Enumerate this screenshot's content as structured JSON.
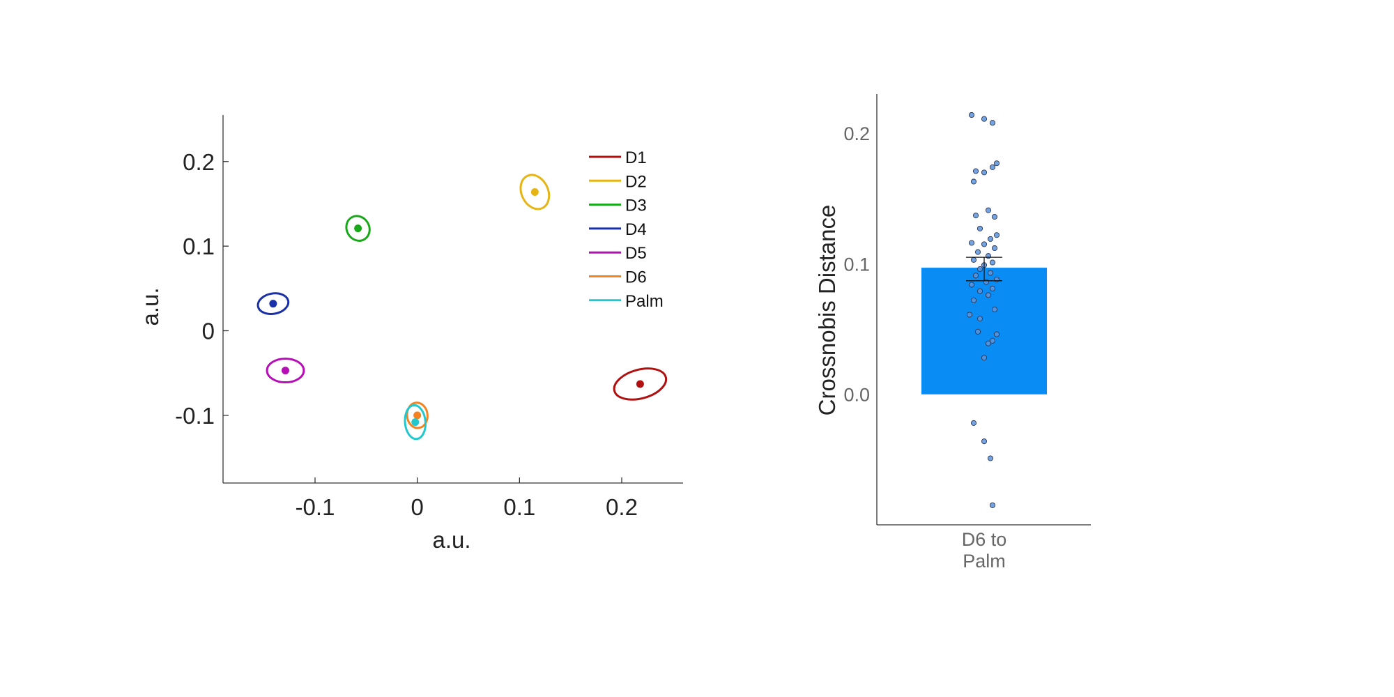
{
  "chart_data": [
    {
      "type": "scatter",
      "xlabel": "a.u.",
      "ylabel": "a.u.",
      "xlim": [
        -0.19,
        0.26
      ],
      "ylim": [
        -0.18,
        0.255
      ],
      "xticks": [
        -0.1,
        0,
        0.1,
        0.2
      ],
      "xtick_labels": [
        "-0.1",
        "0",
        "0.1",
        "0.2"
      ],
      "yticks": [
        -0.1,
        0,
        0.1,
        0.2
      ],
      "ytick_labels": [
        "-0.1",
        "0",
        "0.1",
        "0.2"
      ],
      "legend_position": "top-right",
      "series": [
        {
          "name": "D1",
          "color": "#b01010",
          "x": 0.218,
          "y": -0.063,
          "ellipse_rx": 0.026,
          "ellipse_ry": 0.017,
          "ellipse_angle_deg": 15
        },
        {
          "name": "D2",
          "color": "#e6b413",
          "x": 0.115,
          "y": 0.164,
          "ellipse_rx": 0.013,
          "ellipse_ry": 0.021,
          "ellipse_angle_deg": 25
        },
        {
          "name": "D3",
          "color": "#19a819",
          "x": -0.058,
          "y": 0.121,
          "ellipse_rx": 0.011,
          "ellipse_ry": 0.015,
          "ellipse_angle_deg": 30
        },
        {
          "name": "D4",
          "color": "#1a30a8",
          "x": -0.141,
          "y": 0.032,
          "ellipse_rx": 0.015,
          "ellipse_ry": 0.012,
          "ellipse_angle_deg": 10
        },
        {
          "name": "D5",
          "color": "#b50eb5",
          "x": -0.129,
          "y": -0.047,
          "ellipse_rx": 0.018,
          "ellipse_ry": 0.014,
          "ellipse_angle_deg": 0
        },
        {
          "name": "D6",
          "color": "#f5821f",
          "x": 0.0,
          "y": -0.1,
          "ellipse_rx": 0.01,
          "ellipse_ry": 0.015,
          "ellipse_angle_deg": 5
        },
        {
          "name": "Palm",
          "color": "#22c8cc",
          "x": -0.002,
          "y": -0.108,
          "ellipse_rx": 0.01,
          "ellipse_ry": 0.02,
          "ellipse_angle_deg": 5
        }
      ]
    },
    {
      "type": "bar",
      "categories": [
        "D6 to\nPalm"
      ],
      "category_lines": [
        "D6 to",
        "Palm"
      ],
      "values": [
        0.097
      ],
      "error_low": 0.087,
      "error_high": 0.105,
      "bar_color": "#0a8cf5",
      "point_color": "#5b93dc",
      "ylabel": "Crossnobis Distance",
      "ylim": [
        -0.1,
        0.23
      ],
      "yticks": [
        0.0,
        0.1,
        0.2
      ],
      "ytick_labels": [
        "0.0",
        "0.1",
        "0.2"
      ],
      "points": [
        {
          "jitter": -0.06,
          "y": 0.214
        },
        {
          "jitter": 0.0,
          "y": 0.211
        },
        {
          "jitter": 0.04,
          "y": 0.208
        },
        {
          "jitter": 0.06,
          "y": 0.177
        },
        {
          "jitter": 0.04,
          "y": 0.174
        },
        {
          "jitter": -0.04,
          "y": 0.171
        },
        {
          "jitter": 0.0,
          "y": 0.17
        },
        {
          "jitter": -0.05,
          "y": 0.163
        },
        {
          "jitter": 0.02,
          "y": 0.141
        },
        {
          "jitter": -0.04,
          "y": 0.137
        },
        {
          "jitter": 0.05,
          "y": 0.136
        },
        {
          "jitter": -0.02,
          "y": 0.127
        },
        {
          "jitter": 0.06,
          "y": 0.122
        },
        {
          "jitter": 0.03,
          "y": 0.119
        },
        {
          "jitter": -0.06,
          "y": 0.116
        },
        {
          "jitter": 0.0,
          "y": 0.115
        },
        {
          "jitter": 0.05,
          "y": 0.112
        },
        {
          "jitter": -0.03,
          "y": 0.109
        },
        {
          "jitter": 0.02,
          "y": 0.106
        },
        {
          "jitter": -0.05,
          "y": 0.103
        },
        {
          "jitter": 0.04,
          "y": 0.101
        },
        {
          "jitter": 0.0,
          "y": 0.099
        },
        {
          "jitter": -0.02,
          "y": 0.096
        },
        {
          "jitter": 0.03,
          "y": 0.093
        },
        {
          "jitter": -0.04,
          "y": 0.091
        },
        {
          "jitter": 0.06,
          "y": 0.088
        },
        {
          "jitter": 0.01,
          "y": 0.086
        },
        {
          "jitter": -0.06,
          "y": 0.084
        },
        {
          "jitter": 0.04,
          "y": 0.081
        },
        {
          "jitter": -0.02,
          "y": 0.079
        },
        {
          "jitter": 0.02,
          "y": 0.076
        },
        {
          "jitter": -0.05,
          "y": 0.072
        },
        {
          "jitter": 0.05,
          "y": 0.065
        },
        {
          "jitter": -0.07,
          "y": 0.061
        },
        {
          "jitter": -0.02,
          "y": 0.058
        },
        {
          "jitter": 0.06,
          "y": 0.046
        },
        {
          "jitter": -0.03,
          "y": 0.048
        },
        {
          "jitter": 0.04,
          "y": 0.041
        },
        {
          "jitter": 0.02,
          "y": 0.039
        },
        {
          "jitter": 0.0,
          "y": 0.028
        },
        {
          "jitter": -0.05,
          "y": -0.022
        },
        {
          "jitter": 0.0,
          "y": -0.036
        },
        {
          "jitter": 0.03,
          "y": -0.049
        },
        {
          "jitter": 0.04,
          "y": -0.085
        }
      ]
    }
  ]
}
